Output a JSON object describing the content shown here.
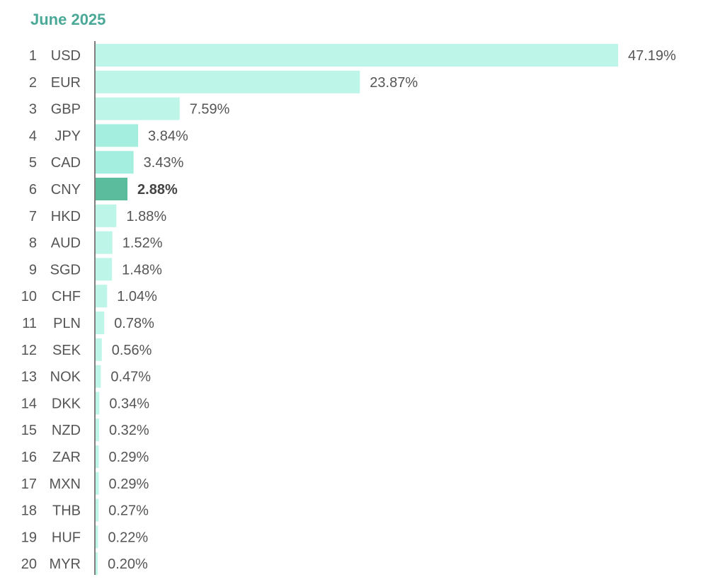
{
  "chart_data": {
    "type": "bar",
    "orientation": "horizontal",
    "title": "June 2025",
    "xlabel": "",
    "ylabel": "",
    "xlim": [
      0,
      47.19
    ],
    "grid": false,
    "ranks": [
      "1",
      "2",
      "3",
      "4",
      "5",
      "6",
      "7",
      "8",
      "9",
      "10",
      "11",
      "12",
      "13",
      "14",
      "15",
      "16",
      "17",
      "18",
      "19",
      "20"
    ],
    "categories": [
      "USD",
      "EUR",
      "GBP",
      "JPY",
      "CAD",
      "CNY",
      "HKD",
      "AUD",
      "SGD",
      "CHF",
      "PLN",
      "SEK",
      "NOK",
      "DKK",
      "NZD",
      "ZAR",
      "MXN",
      "THB",
      "HUF",
      "MYR"
    ],
    "values": [
      47.19,
      23.87,
      7.59,
      3.84,
      3.43,
      2.88,
      1.88,
      1.52,
      1.48,
      1.04,
      0.78,
      0.56,
      0.47,
      0.34,
      0.32,
      0.29,
      0.29,
      0.27,
      0.22,
      0.2
    ],
    "value_labels": [
      "47.19%",
      "23.87%",
      "7.59%",
      "3.84%",
      "3.43%",
      "2.88%",
      "1.88%",
      "1.52%",
      "1.48%",
      "1.04%",
      "0.78%",
      "0.56%",
      "0.47%",
      "0.34%",
      "0.32%",
      "0.29%",
      "0.29%",
      "0.27%",
      "0.22%",
      "0.20%"
    ],
    "highlight": "CNY",
    "colors": {
      "bar_default": "#bdf5e8",
      "bar_medium": "#a4eee0",
      "bar_highlight": "#5bbc9d",
      "title": "#4aa897",
      "axis": "#555555",
      "text": "#555555"
    }
  }
}
